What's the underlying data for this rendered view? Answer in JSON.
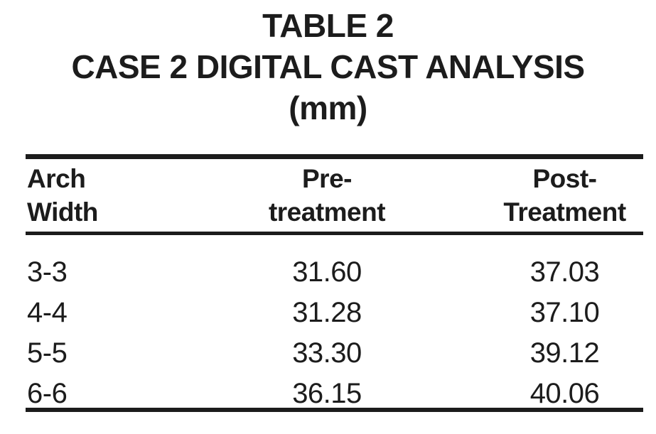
{
  "title": {
    "line1": "TABLE 2",
    "line2": "CASE 2 DIGITAL CAST ANALYSIS",
    "line3": "(mm)"
  },
  "table": {
    "column_headers": [
      {
        "line1": "Arch",
        "line2": "Width"
      },
      {
        "line1": "Pre-",
        "line2": "treatment"
      },
      {
        "line1": "Post-",
        "line2": "Treatment"
      }
    ],
    "rows": [
      {
        "arch_width": "3-3",
        "pre_treatment": "31.60",
        "post_treatment": "37.03"
      },
      {
        "arch_width": "4-4",
        "pre_treatment": "31.28",
        "post_treatment": "37.10"
      },
      {
        "arch_width": "5-5",
        "pre_treatment": "33.30",
        "post_treatment": "39.12"
      },
      {
        "arch_width": "6-6",
        "pre_treatment": "36.15",
        "post_treatment": "40.06"
      }
    ]
  },
  "colors": {
    "text": "#1c1c1c",
    "rule": "#1c1c1c",
    "background": "#ffffff"
  },
  "chart_data": {
    "type": "table",
    "title": "TABLE 2 CASE 2 DIGITAL CAST ANALYSIS (mm)",
    "columns": [
      "Arch Width",
      "Pre-treatment",
      "Post-Treatment"
    ],
    "rows": [
      [
        "3-3",
        31.6,
        37.03
      ],
      [
        "4-4",
        31.28,
        37.1
      ],
      [
        "5-5",
        33.3,
        39.12
      ],
      [
        "6-6",
        36.15,
        40.06
      ]
    ]
  }
}
